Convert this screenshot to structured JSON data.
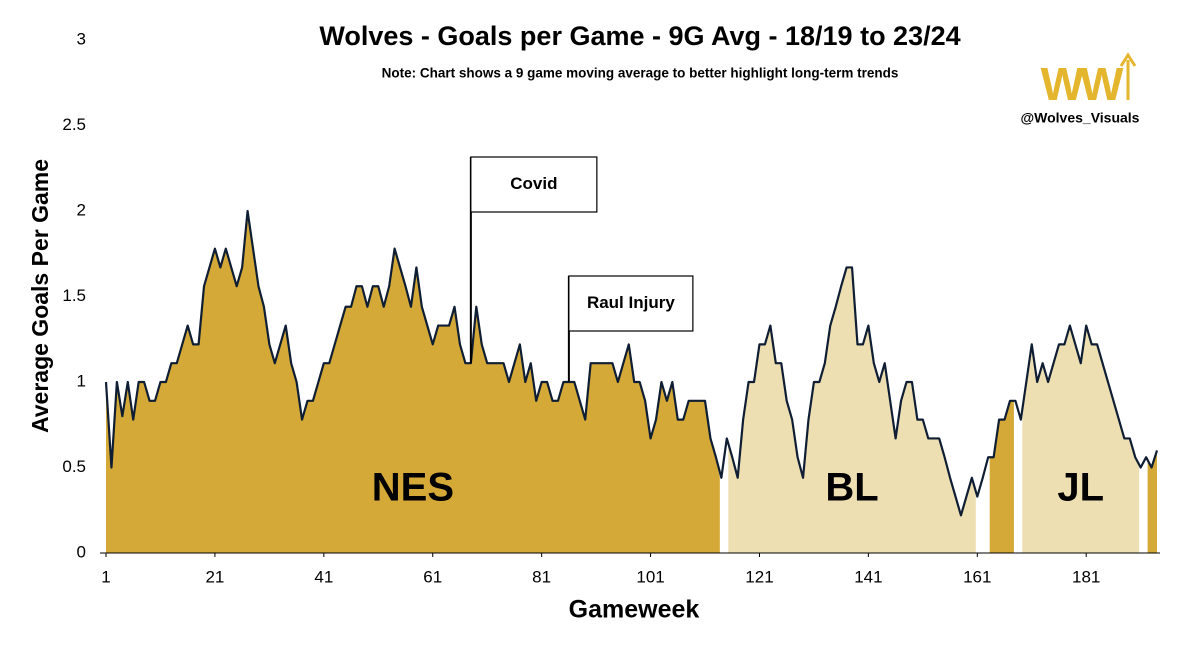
{
  "chart_data": {
    "type": "area",
    "title": "Wolves - Goals per Game - 9G Avg - 18/19 to 23/24",
    "subtitle": "Note: Chart shows a 9 game moving average to better highlight long-term trends",
    "x_label": "Gameweek",
    "y_label": "Average Goals Per Game",
    "logo": "WW",
    "handle": "@Wolves_Visuals",
    "xlim": [
      1,
      194
    ],
    "ylim": [
      0,
      3
    ],
    "xticks": [
      1,
      21,
      41,
      61,
      81,
      101,
      121,
      141,
      161,
      181
    ],
    "yticks": [
      0,
      0.5,
      1,
      1.5,
      2,
      2.5,
      3
    ],
    "line_color": "#0f1e33",
    "values": [
      1.0,
      0.5,
      1.0,
      0.8,
      1.0,
      0.78,
      1.0,
      1.0,
      0.89,
      0.89,
      1.0,
      1.0,
      1.11,
      1.11,
      1.22,
      1.33,
      1.22,
      1.22,
      1.56,
      1.67,
      1.78,
      1.67,
      1.78,
      1.67,
      1.56,
      1.67,
      2.0,
      1.78,
      1.56,
      1.44,
      1.22,
      1.11,
      1.22,
      1.33,
      1.11,
      1.0,
      0.78,
      0.89,
      0.89,
      1.0,
      1.11,
      1.11,
      1.22,
      1.33,
      1.44,
      1.44,
      1.56,
      1.56,
      1.44,
      1.56,
      1.56,
      1.44,
      1.56,
      1.78,
      1.67,
      1.56,
      1.44,
      1.67,
      1.44,
      1.33,
      1.22,
      1.33,
      1.33,
      1.33,
      1.44,
      1.22,
      1.11,
      1.11,
      1.44,
      1.22,
      1.11,
      1.11,
      1.11,
      1.11,
      1.0,
      1.11,
      1.22,
      1.0,
      1.11,
      0.89,
      1.0,
      1.0,
      0.89,
      0.89,
      1.0,
      1.0,
      1.0,
      0.89,
      0.78,
      1.11,
      1.11,
      1.11,
      1.11,
      1.11,
      1.0,
      1.11,
      1.22,
      1.0,
      1.0,
      0.89,
      0.67,
      0.78,
      1.0,
      0.89,
      1.0,
      0.78,
      0.78,
      0.89,
      0.89,
      0.89,
      0.89,
      0.67,
      0.56,
      0.44,
      0.67,
      0.56,
      0.44,
      0.78,
      1.0,
      1.0,
      1.22,
      1.22,
      1.33,
      1.11,
      1.11,
      0.89,
      0.78,
      0.56,
      0.44,
      0.78,
      1.0,
      1.0,
      1.11,
      1.33,
      1.44,
      1.56,
      1.67,
      1.67,
      1.22,
      1.22,
      1.33,
      1.11,
      1.0,
      1.11,
      0.89,
      0.67,
      0.89,
      1.0,
      1.0,
      0.78,
      0.78,
      0.67,
      0.67,
      0.67,
      0.56,
      0.44,
      0.33,
      0.22,
      0.33,
      0.44,
      0.33,
      0.44,
      0.56,
      0.56,
      0.78,
      0.78,
      0.89,
      0.89,
      0.78,
      1.0,
      1.22,
      1.0,
      1.11,
      1.0,
      1.11,
      1.22,
      1.22,
      1.33,
      1.22,
      1.11,
      1.33,
      1.22,
      1.22,
      1.11,
      1.0,
      0.89,
      0.78,
      0.67,
      0.67,
      0.56,
      0.5,
      0.56,
      0.5,
      0.6
    ],
    "regions": [
      {
        "label": "NES",
        "start": 1,
        "end": 114,
        "color": "#d4a937"
      },
      {
        "label": "BL",
        "start": 115,
        "end": 161,
        "color": "#eedfb3"
      },
      {
        "start": 163,
        "end": 168,
        "color": "#d4a937"
      },
      {
        "label": "JL",
        "start": 169,
        "end": 191,
        "color": "#eedfb3"
      },
      {
        "start": 192,
        "end": 194,
        "color": "#d4a937"
      }
    ],
    "annotations": [
      {
        "text": "Covid",
        "x": 68
      },
      {
        "text": "Raul Injury",
        "x": 86
      }
    ]
  }
}
